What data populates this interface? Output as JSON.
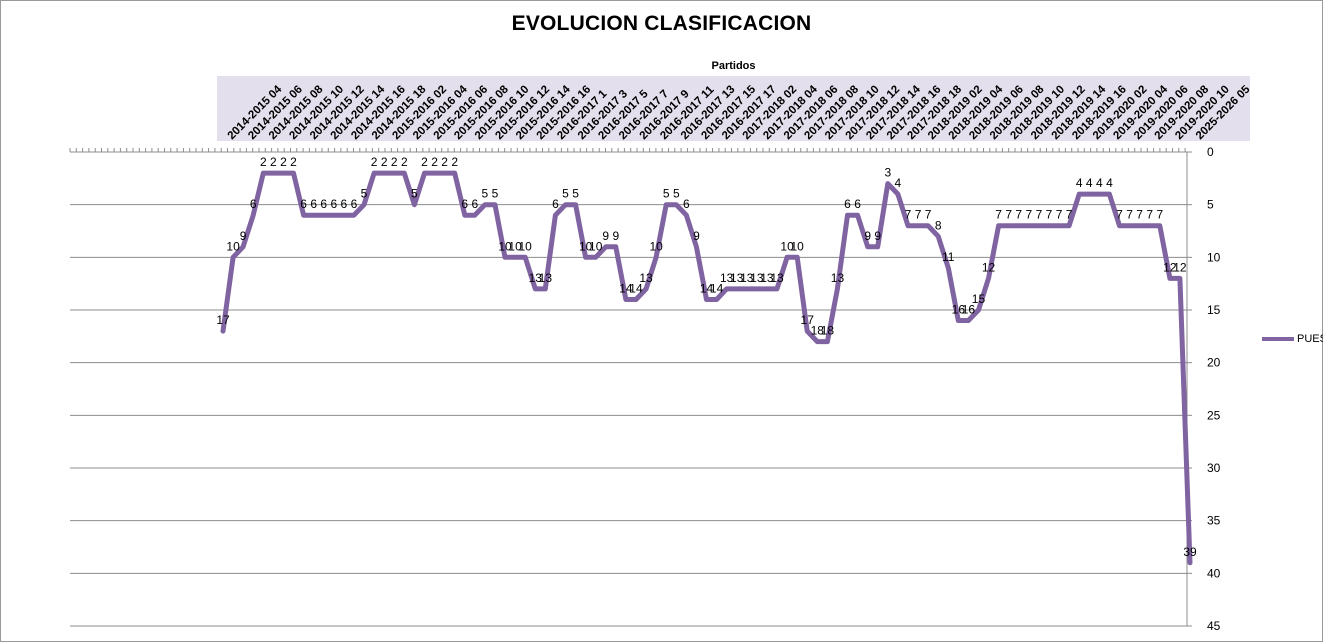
{
  "chart_data": {
    "type": "line",
    "title": "EVOLUCION CLASIFICACION",
    "xlabel": "Partidos",
    "ylabel": "",
    "y_inverted": true,
    "ylim": [
      0,
      45
    ],
    "yticks": [
      0,
      5,
      10,
      15,
      20,
      25,
      30,
      35,
      40,
      45
    ],
    "grid": true,
    "legend_position": "right",
    "line_color": "#8064A2",
    "x_tick_labels": [
      "2014-2015 04",
      "2014-2015 06",
      "2014-2015 08",
      "2014-2015 10",
      "2014-2015 12",
      "2014-2015 14",
      "2014-2015 16",
      "2014-2015 18",
      "2015-2016 02",
      "2015-2016 04",
      "2015-2016 06",
      "2015-2016 08",
      "2015-2016 10",
      "2015-2016 12",
      "2015-2016 14",
      "2015-2016 16",
      "2016-2017 1",
      "2016-2017 3",
      "2016-2017 5",
      "2016-2017 7",
      "2016-2017 9",
      "2016-2017 11",
      "2016-2017 13",
      "2016-2017 15",
      "2016-2017 17",
      "2017-2018 02",
      "2017-2018 04",
      "2017-2018 06",
      "2017-2018 08",
      "2017-2018 10",
      "2017-2018 12",
      "2017-2018 14",
      "2017-2018 16",
      "2017-2018 18",
      "2018-2019 02",
      "2018-2019 04",
      "2018-2019 06",
      "2018-2019 08",
      "2018-2019 10",
      "2018-2019 12",
      "2018-2019 14",
      "2018-2019 16",
      "2019-2020 02",
      "2019-2020 04",
      "2019-2020 06",
      "2019-2020 08",
      "2019-2020 10",
      "2025-2026 05"
    ],
    "series": [
      {
        "name": "PUESTO",
        "values": [
          17,
          10,
          9,
          6,
          2,
          2,
          2,
          2,
          6,
          6,
          6,
          6,
          6,
          6,
          5,
          2,
          2,
          2,
          2,
          5,
          2,
          2,
          2,
          2,
          6,
          6,
          5,
          5,
          10,
          10,
          10,
          13,
          13,
          6,
          5,
          5,
          10,
          10,
          9,
          9,
          14,
          14,
          13,
          10,
          5,
          5,
          6,
          9,
          14,
          14,
          13,
          13,
          13,
          13,
          13,
          13,
          10,
          10,
          17,
          18,
          18,
          13,
          6,
          6,
          9,
          9,
          3,
          4,
          7,
          7,
          7,
          8,
          11,
          16,
          16,
          15,
          12,
          7,
          7,
          7,
          7,
          7,
          7,
          7,
          7,
          4,
          4,
          4,
          4,
          7,
          7,
          7,
          7,
          7,
          12,
          12,
          39
        ]
      }
    ]
  }
}
